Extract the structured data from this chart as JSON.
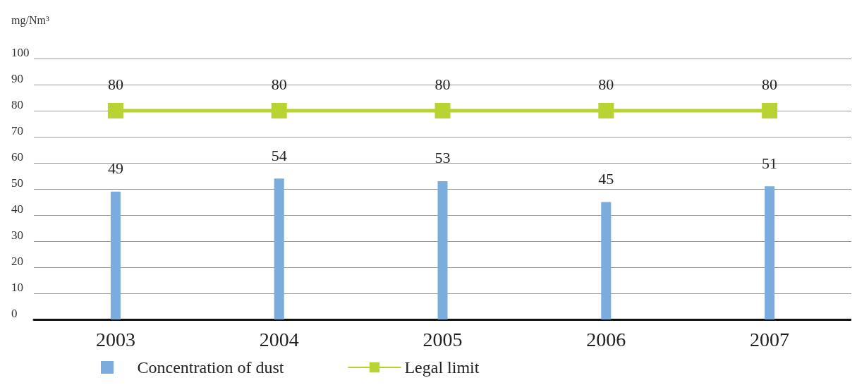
{
  "chart_data": {
    "type": "bar",
    "ylabel": "mg/Nm³",
    "categories": [
      "2003",
      "2004",
      "2005",
      "2006",
      "2007"
    ],
    "series": [
      {
        "name": "Concentration of dust",
        "color": "#7aaddd",
        "values": [
          49,
          54,
          53,
          45,
          51
        ]
      },
      {
        "name": "Legal limit",
        "type": "line",
        "color": "#b8d433",
        "values": [
          80,
          80,
          80,
          80,
          80
        ]
      }
    ],
    "ylim": [
      0,
      100
    ],
    "yticks": [
      0,
      10,
      20,
      30,
      40,
      50,
      60,
      70,
      80,
      90,
      100
    ],
    "grid": "y",
    "legend": "bottom",
    "marker": "square",
    "data_labels": true
  }
}
